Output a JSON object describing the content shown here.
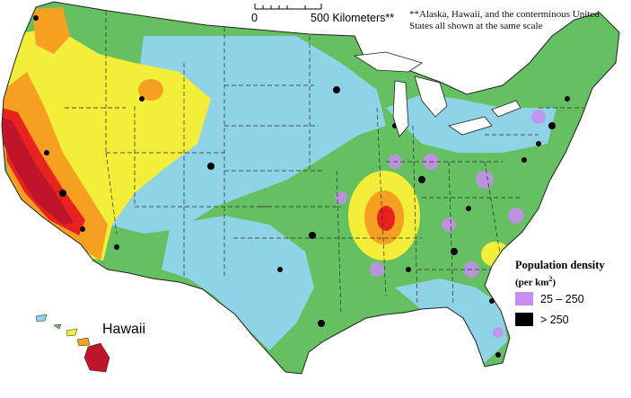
{
  "scale_bar": {
    "start_label": "0",
    "end_label": "500 Kilometers**"
  },
  "note": "**Alaska, Hawaii, and the conterminous United States all shown at the same scale",
  "legend": {
    "title": "Population density",
    "unit_prefix": "(per km",
    "unit_sup": "2",
    "unit_suffix": ")",
    "items": [
      {
        "label": "25 – 250",
        "color": "#c98cf0"
      },
      {
        "label": "> 250",
        "color": "#000000"
      }
    ]
  },
  "region_labels": {
    "hawaii": "Hawaii"
  },
  "colors": {
    "low": "#8ed3e6",
    "low_moderate": "#64c060",
    "moderate": "#f2ee3a",
    "high": "#f5a020",
    "very_high": "#e8231f",
    "highest": "#c0142a"
  }
}
